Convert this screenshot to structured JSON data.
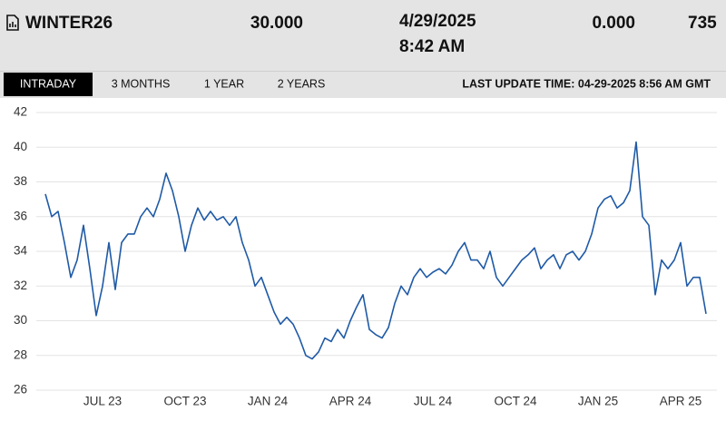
{
  "header": {
    "symbol": "WINTER26",
    "price": "30.000",
    "date": "4/29/2025",
    "time": "8:42 AM",
    "change": "0.000",
    "volume": "735"
  },
  "tabs": [
    "INTRADAY",
    "3 MONTHS",
    "1 YEAR",
    "2 YEARS"
  ],
  "last_update": "LAST UPDATE TIME: 04-29-2025 8:56 AM GMT",
  "chart_data": {
    "type": "line",
    "categories": [
      null,
      null,
      null,
      null,
      null,
      null,
      null,
      null,
      null,
      "JUL 23",
      null,
      null,
      null,
      null,
      null,
      null,
      null,
      null,
      null,
      null,
      null,
      null,
      "OCT 23",
      null,
      null,
      null,
      null,
      null,
      null,
      null,
      null,
      null,
      null,
      null,
      null,
      "JAN 24",
      null,
      null,
      null,
      null,
      null,
      null,
      null,
      null,
      null,
      null,
      null,
      null,
      "APR 24",
      null,
      null,
      null,
      null,
      null,
      null,
      null,
      null,
      null,
      null,
      null,
      null,
      "JUL 24",
      null,
      null,
      null,
      null,
      null,
      null,
      null,
      null,
      null,
      null,
      null,
      null,
      "OCT 24",
      null,
      null,
      null,
      null,
      null,
      null,
      null,
      null,
      null,
      null,
      null,
      null,
      "JAN 25",
      null,
      null,
      null,
      null,
      null,
      null,
      null,
      null,
      null,
      null,
      null,
      null,
      "APR 25",
      null,
      null,
      null,
      null
    ],
    "series": [
      {
        "color": "#1f5aa6",
        "values": [
          37.3,
          36.0,
          36.3,
          34.5,
          32.5,
          33.5,
          35.5,
          33.0,
          30.3,
          32.0,
          34.5,
          31.8,
          34.5,
          35.0,
          35.0,
          36.0,
          36.5,
          36.0,
          37.0,
          38.5,
          37.5,
          36.0,
          34.0,
          35.5,
          36.5,
          35.8,
          36.3,
          35.8,
          36.0,
          35.5,
          36.0,
          34.5,
          33.5,
          32.0,
          32.5,
          31.5,
          30.5,
          29.8,
          30.2,
          29.8,
          29.0,
          28.0,
          27.8,
          28.2,
          29.0,
          28.8,
          29.5,
          29.0,
          30.0,
          30.8,
          31.5,
          29.5,
          29.2,
          29.0,
          29.6,
          31.0,
          32.0,
          31.5,
          32.5,
          33.0,
          32.5,
          32.8,
          33.0,
          32.7,
          33.2,
          34.0,
          34.5,
          33.5,
          33.5,
          33.0,
          34.0,
          32.5,
          32.0,
          32.5,
          33.0,
          33.5,
          33.8,
          34.2,
          33.0,
          33.5,
          33.8,
          33.0,
          33.8,
          34.0,
          33.5,
          34.0,
          35.0,
          36.5,
          37.0,
          37.2,
          36.5,
          36.8,
          37.5,
          40.3,
          36.0,
          35.5,
          31.5,
          33.5,
          33.0,
          33.5,
          34.5,
          32.0,
          32.5,
          32.5,
          30.4
        ]
      }
    ],
    "ylim": [
      26,
      42
    ],
    "yticks": [
      26,
      28,
      30,
      32,
      34,
      36,
      38,
      40,
      42
    ],
    "grid": true
  }
}
